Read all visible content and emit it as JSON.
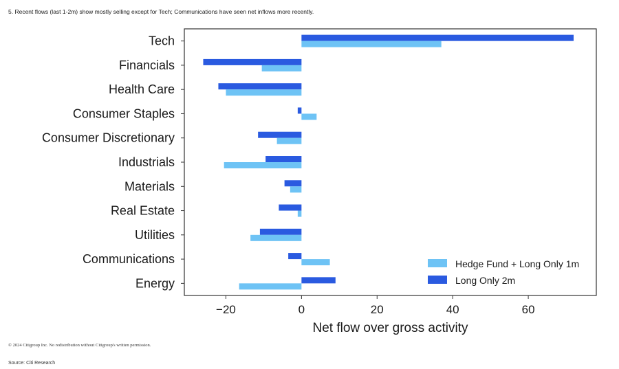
{
  "heading": "5. Recent flows (last 1-2m) show mostly selling except for Tech; Communications have seen net inflows more recently.",
  "copyright": "© 2024 Citigroup Inc. No redistribution without Citigroup's written permission.",
  "source": "Source: Citi Research",
  "chart_data": {
    "type": "bar",
    "orientation": "horizontal",
    "title": "",
    "xlabel": "Net flow over gross activity",
    "ylabel": "",
    "xlim": [
      -31,
      78
    ],
    "xticks": [
      -20,
      0,
      20,
      40,
      60
    ],
    "xtick_labels": [
      "−20",
      "0",
      "20",
      "40",
      "60"
    ],
    "grid": false,
    "legend_position": "bottom-right",
    "categories": [
      "Tech",
      "Financials",
      "Health Care",
      "Consumer Staples",
      "Consumer Discretionary",
      "Industrials",
      "Materials",
      "Real Estate",
      "Utilities",
      "Communications",
      "Energy"
    ],
    "series": [
      {
        "name": "Hedge Fund + Long Only 1m",
        "color": "#6ec3f5",
        "values": [
          37,
          -10.5,
          -20,
          4,
          -6.5,
          -20.5,
          -3,
          -1,
          -13.5,
          7.5,
          -16.5
        ]
      },
      {
        "name": "Long Only 2m",
        "color": "#2a5ae0",
        "values": [
          72,
          -26,
          -22,
          -1,
          -11.5,
          -9.5,
          -4.5,
          -6,
          -11,
          -3.5,
          9
        ]
      }
    ]
  }
}
